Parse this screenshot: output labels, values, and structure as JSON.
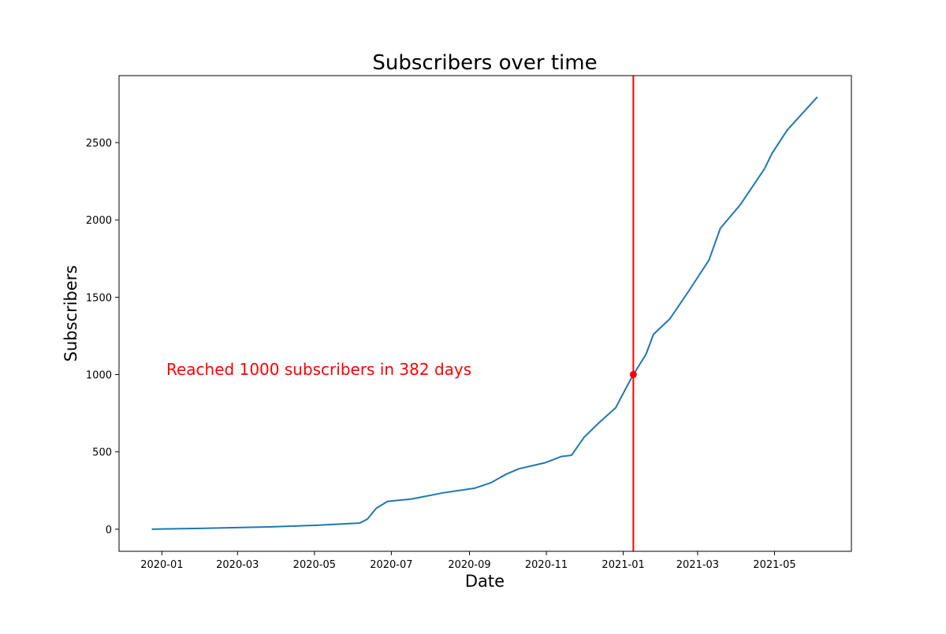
{
  "chart_data": {
    "type": "line",
    "title": "Subscribers over time",
    "xlabel": "Date",
    "ylabel": "Subscribers",
    "xlim": [
      "2019-11-28",
      "2021-07-01"
    ],
    "ylim": [
      -143,
      2933
    ],
    "x_ticks": [
      "2020-01",
      "2020-03",
      "2020-05",
      "2020-07",
      "2020-09",
      "2020-11",
      "2021-01",
      "2021-03",
      "2021-05"
    ],
    "y_ticks": [
      0,
      500,
      1000,
      1500,
      2000,
      2500
    ],
    "grid": false,
    "series": [
      {
        "color": "#1f77b4",
        "x": [
          "2019-12-24",
          "2020-02-01",
          "2020-03-26",
          "2020-05-02",
          "2020-06-06",
          "2020-06-12",
          "2020-06-19",
          "2020-06-28",
          "2020-07-17",
          "2020-08-11",
          "2020-09-05",
          "2020-09-18",
          "2020-09-30",
          "2020-10-10",
          "2020-10-31",
          "2020-11-13",
          "2020-11-21",
          "2020-12-01",
          "2020-12-13",
          "2020-12-26",
          "2021-01-04",
          "2021-01-09",
          "2021-01-19",
          "2021-01-25",
          "2021-02-07",
          "2021-02-22",
          "2021-03-10",
          "2021-03-19",
          "2021-04-04",
          "2021-04-23",
          "2021-04-29",
          "2021-05-11",
          "2021-06-04"
        ],
        "y": [
          0,
          5,
          15,
          25,
          40,
          65,
          135,
          180,
          195,
          235,
          265,
          300,
          355,
          390,
          430,
          470,
          478,
          595,
          690,
          785,
          925,
          1000,
          1130,
          1260,
          1360,
          1540,
          1740,
          1945,
          2100,
          2330,
          2430,
          2580,
          2795
        ]
      }
    ],
    "milestone": {
      "date": "2021-01-09",
      "value": 1000,
      "color": "#ff0000",
      "annotation": "Reached 1000 subscribers in 382 days"
    }
  }
}
